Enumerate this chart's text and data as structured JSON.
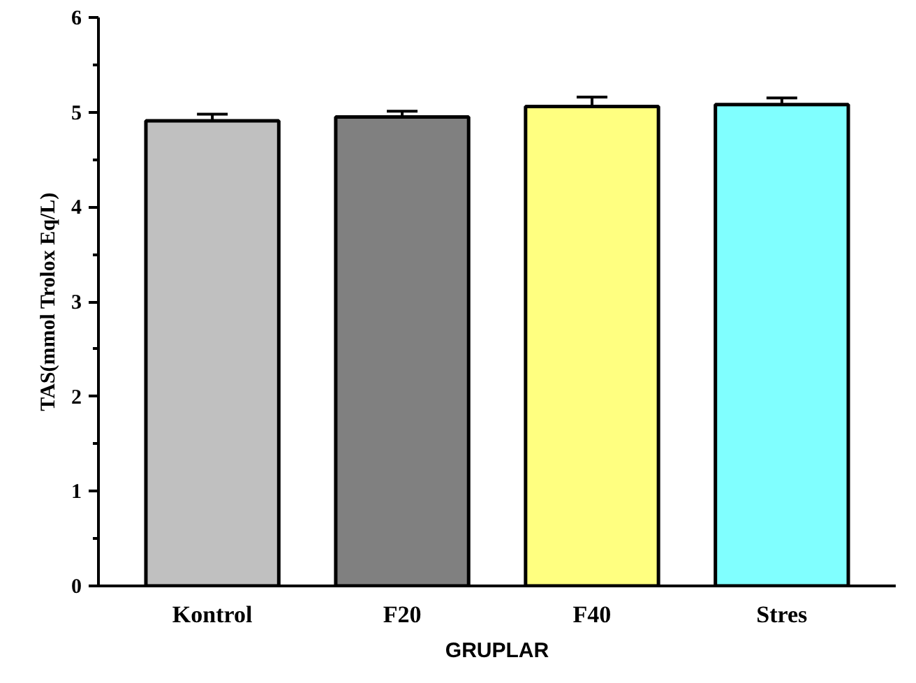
{
  "chart_data": {
    "type": "bar",
    "xlabel": "GRUPLAR",
    "ylabel": "TAS(mmol Trolox Eq/L)",
    "categories": [
      "Kontrol",
      "F20",
      "F40",
      "Stres"
    ],
    "values": [
      4.91,
      4.95,
      5.06,
      5.08
    ],
    "colors": [
      "#c0c0c0",
      "#808080",
      "#ffff80",
      "#80ffff"
    ],
    "errors": [
      0.07,
      0.06,
      0.1,
      0.07
    ],
    "ylim": [
      0,
      6
    ],
    "yticks": [
      0,
      1,
      2,
      3,
      4,
      5,
      6
    ],
    "grid": false
  }
}
